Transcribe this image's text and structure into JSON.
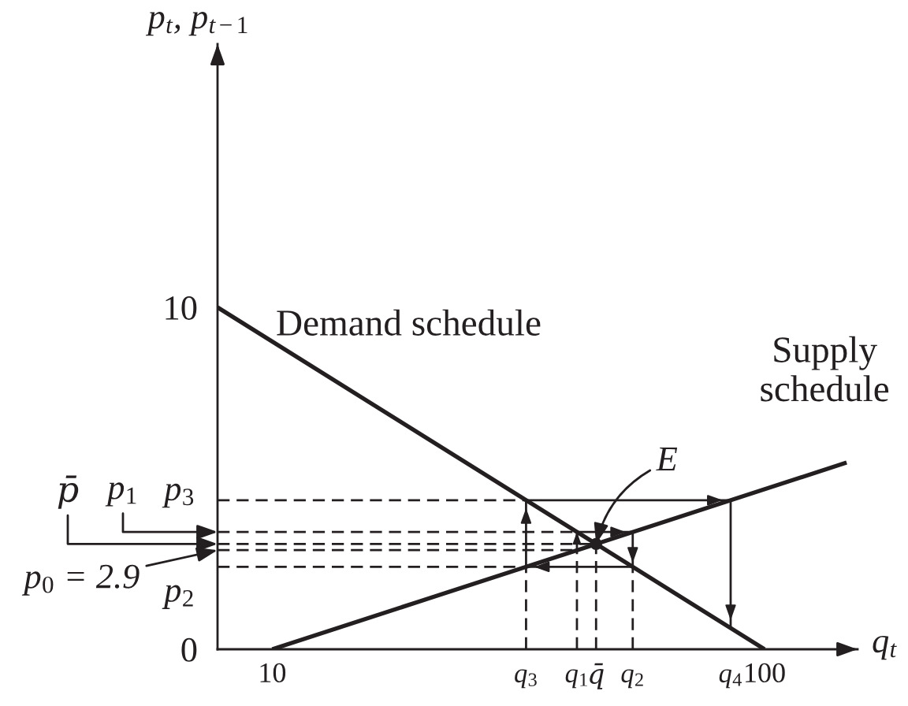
{
  "chart_data": {
    "type": "line",
    "xlabel": "q$_{t}$",
    "ylabel": "p$_{t}$, p$_{t−1}$",
    "xlim": [
      0,
      117
    ],
    "ylim": [
      0,
      17.7
    ],
    "xticks": [
      10,
      100
    ],
    "yticks": [
      0,
      10
    ],
    "series": [
      {
        "name": "Demand schedule",
        "color": "#231f20",
        "x": [
          0,
          100
        ],
        "values": [
          10,
          0
        ]
      },
      {
        "name": "Supply\nschedule",
        "color": "#231f20",
        "x": [
          10,
          115
        ],
        "values": [
          0,
          5.46
        ]
      },
      {
        "color": "#231f20",
        "line_style": "dashed",
        "x": [
          0,
          56.4
        ],
        "values": [
          4.36,
          4.36
        ]
      },
      {
        "color": "#231f20",
        "line_style": "dashed",
        "x": [
          0,
          65.7
        ],
        "values": [
          3.43,
          3.43
        ]
      },
      {
        "color": "#231f20",
        "line_style": "dashed",
        "x": [
          0,
          69.2
        ],
        "values": [
          3.08,
          3.08
        ]
      },
      {
        "color": "#231f20",
        "line_style": "dashed",
        "x": [
          0,
          65.7
        ],
        "values": [
          2.9,
          2.9
        ]
      },
      {
        "color": "#231f20",
        "line_style": "dashed",
        "x": [
          0,
          56.4
        ],
        "values": [
          2.41,
          2.41
        ]
      },
      {
        "color": "#231f20",
        "line_style": "dashed",
        "x": [
          56.4,
          56.4
        ],
        "values": [
          0,
          2.41
        ]
      },
      {
        "color": "#231f20",
        "line_style": "dashed",
        "x": [
          65.7,
          65.7
        ],
        "values": [
          0,
          2.9
        ]
      },
      {
        "color": "#231f20",
        "line_style": "dashed",
        "x": [
          69.2,
          69.2
        ],
        "values": [
          0,
          3.08
        ]
      },
      {
        "color": "#231f20",
        "line_style": "dashed",
        "x": [
          75.9,
          75.9
        ],
        "values": [
          0,
          2.41
        ]
      },
      {
        "color": "#231f20",
        "x": [
          65.7,
          65.7,
          75.9,
          75.9,
          56.4,
          56.4,
          93.8,
          93.8
        ],
        "values": [
          2.9,
          3.43,
          3.43,
          2.41,
          2.41,
          4.36,
          4.36,
          0.62
        ]
      },
      {
        "type": "scatter",
        "color": "#231f20",
        "marker": "circle",
        "x": [
          69.2
        ],
        "values": [
          3.08
        ]
      }
    ],
    "annotations": [
      {
        "text": "p̄",
        "x": 0,
        "y": 3.08
      },
      {
        "text": "p$_{1}$",
        "x": 0,
        "y": 3.43
      },
      {
        "text": "p$_{3}$",
        "x": 0,
        "y": 4.36
      },
      {
        "text": "p$_{0}$ = 2.9",
        "x": 0,
        "y": 2.9
      },
      {
        "text": "p$_{2}$",
        "x": 0,
        "y": 2.41
      },
      {
        "text": "E",
        "x": 69.2,
        "y": 3.08
      },
      {
        "text": "q$_{3}$",
        "x": 56.4,
        "y": 0
      },
      {
        "text": "q$_{1}$",
        "x": 65.7,
        "y": 0
      },
      {
        "text": "q̄",
        "x": 69.2,
        "y": 0
      },
      {
        "text": "q$_{2}$",
        "x": 75.9,
        "y": 0
      },
      {
        "text": "q$_{4}$",
        "x": 93.8,
        "y": 0.62
      }
    ]
  }
}
